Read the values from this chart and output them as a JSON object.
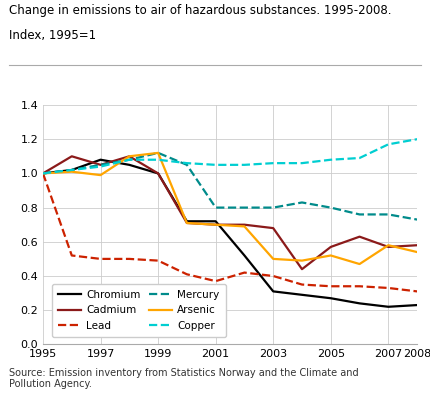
{
  "title_line1": "Change in emissions to air of hazardous substances. 1995-2008.",
  "title_line2": "Index, 1995=1",
  "source": "Source: Emission inventory from Statistics Norway and the Climate and\nPollution Agency.",
  "years": [
    1995,
    1996,
    1997,
    1998,
    1999,
    2000,
    2001,
    2002,
    2003,
    2004,
    2005,
    2006,
    2007,
    2008
  ],
  "series": {
    "Chromium": {
      "values": [
        1.0,
        1.02,
        1.08,
        1.05,
        1.0,
        0.72,
        0.72,
        0.52,
        0.31,
        0.29,
        0.27,
        0.24,
        0.22,
        0.23
      ],
      "color": "#000000",
      "linestyle": "solid",
      "linewidth": 1.6
    },
    "Cadmium": {
      "values": [
        1.0,
        1.1,
        1.05,
        1.1,
        1.0,
        0.71,
        0.7,
        0.7,
        0.68,
        0.44,
        0.57,
        0.63,
        0.57,
        0.58
      ],
      "color": "#8B1A1A",
      "linestyle": "solid",
      "linewidth": 1.6
    },
    "Lead": {
      "values": [
        1.0,
        0.52,
        0.5,
        0.5,
        0.49,
        0.41,
        0.37,
        0.42,
        0.4,
        0.35,
        0.34,
        0.34,
        0.33,
        0.31
      ],
      "color": "#CC2200",
      "linestyle": "dashed",
      "linewidth": 1.6
    },
    "Mercury": {
      "values": [
        1.0,
        1.02,
        1.05,
        1.08,
        1.12,
        1.05,
        0.8,
        0.8,
        0.8,
        0.83,
        0.8,
        0.76,
        0.76,
        0.73
      ],
      "color": "#008B8B",
      "linestyle": "dashed",
      "linewidth": 1.6
    },
    "Arsenic": {
      "values": [
        1.0,
        1.01,
        0.99,
        1.1,
        1.12,
        0.71,
        0.7,
        0.69,
        0.5,
        0.49,
        0.52,
        0.47,
        0.58,
        0.54
      ],
      "color": "#FFA500",
      "linestyle": "solid",
      "linewidth": 1.6
    },
    "Copper": {
      "values": [
        1.0,
        1.02,
        1.04,
        1.08,
        1.08,
        1.06,
        1.05,
        1.05,
        1.06,
        1.06,
        1.08,
        1.09,
        1.17,
        1.2
      ],
      "color": "#00CED1",
      "linestyle": "dashed",
      "linewidth": 1.6
    }
  },
  "ylim": [
    0.0,
    1.4
  ],
  "yticks": [
    0.0,
    0.2,
    0.4,
    0.6,
    0.8,
    1.0,
    1.2,
    1.4
  ],
  "xticks": [
    1995,
    1997,
    1999,
    2001,
    2003,
    2005,
    2007,
    2008
  ],
  "legend_rows": [
    [
      "Chromium",
      "Cadmium"
    ],
    [
      "Lead",
      "Mercury"
    ],
    [
      "Arsenic",
      "Copper"
    ]
  ],
  "background_color": "#ffffff",
  "grid_color": "#cccccc"
}
